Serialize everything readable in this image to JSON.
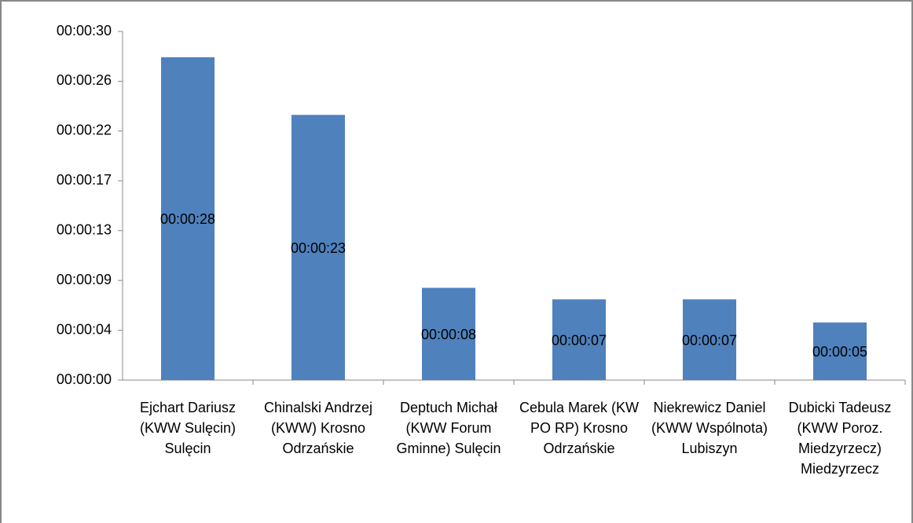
{
  "chart_data": {
    "type": "bar",
    "categories": [
      "Ejchart Dariusz (KWW Sulęcin) Sulęcin",
      "Chinalski Andrzej (KWW) Krosno Odrzańskie",
      "Deptuch Michał (KWW Forum Gminne) Sulęcin",
      "Cebula Marek (KW PO RP) Krosno Odrzańskie",
      "Niekrewicz Daniel (KWW Wspólnota) Lubiszyn",
      "Dubicki Tadeusz (KWW Poroz. Miedzyrzecz) Miedzyrzecz"
    ],
    "values": [
      28,
      23,
      8,
      7,
      7,
      5
    ],
    "value_labels": [
      "00:00:28",
      "00:00:23",
      "00:00:08",
      "00:00:07",
      "00:00:07",
      "00:00:05"
    ],
    "color": "#4f81bd",
    "ylim": [
      0,
      30.24
    ],
    "yticks": [
      {
        "value": 0,
        "label": "00:00:00"
      },
      {
        "value": 4.32,
        "label": "00:00:04"
      },
      {
        "value": 8.64,
        "label": "00:00:09"
      },
      {
        "value": 12.96,
        "label": "00:00:13"
      },
      {
        "value": 17.28,
        "label": "00:00:17"
      },
      {
        "value": 21.6,
        "label": "00:00:22"
      },
      {
        "value": 25.92,
        "label": "00:00:26"
      },
      {
        "value": 30.24,
        "label": "00:00:30"
      }
    ],
    "grid": false
  }
}
